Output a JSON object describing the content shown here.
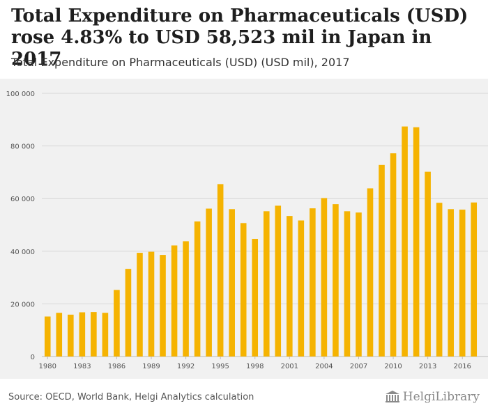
{
  "header": {
    "title": "Total Expenditure on Pharmaceuticals (USD) rose 4.83% to USD 58,523 mil in Japan in 2017",
    "subtitle": "Total Expenditure on Pharmaceuticals (USD) (USD mil), 2017"
  },
  "footer": {
    "source": "Source: OECD, World Bank, Helgi Analytics calculation",
    "brand": "HelgiLibrary"
  },
  "colors": {
    "bar": "#f5b301",
    "grid": "#d6d6d6",
    "plot_background": "#f1f1f1",
    "axis_text": "#555555"
  },
  "chart_data": {
    "type": "bar",
    "title": "",
    "xlabel": "",
    "ylabel": "",
    "ylim": [
      0,
      100000
    ],
    "yticks": [
      0,
      20000,
      40000,
      60000,
      80000,
      100000
    ],
    "ytick_labels": [
      "0",
      "20 000",
      "40 000",
      "60 000",
      "80 000",
      "100 000"
    ],
    "xtick_labels": [
      "1980",
      "1983",
      "1986",
      "1989",
      "1992",
      "1995",
      "1998",
      "2001",
      "2004",
      "2007",
      "2010",
      "2013",
      "2016"
    ],
    "grid": true,
    "categories": [
      "1980",
      "1981",
      "1982",
      "1983",
      "1984",
      "1985",
      "1986",
      "1987",
      "1988",
      "1989",
      "1990",
      "1991",
      "1992",
      "1993",
      "1994",
      "1995",
      "1996",
      "1997",
      "1998",
      "1999",
      "2000",
      "2001",
      "2002",
      "2003",
      "2004",
      "2005",
      "2006",
      "2007",
      "2008",
      "2009",
      "2010",
      "2011",
      "2012",
      "2013",
      "2014",
      "2015",
      "2016",
      "2017"
    ],
    "values": [
      15200,
      16600,
      15900,
      16800,
      16900,
      16600,
      25300,
      33300,
      39400,
      39800,
      38600,
      42200,
      43800,
      51300,
      56200,
      65500,
      56000,
      50700,
      44700,
      55200,
      57300,
      53400,
      51700,
      56300,
      60200,
      57900,
      55200,
      54700,
      63900,
      72800,
      77200,
      87400,
      87100,
      70200,
      58400,
      56000,
      55800,
      58523
    ]
  }
}
